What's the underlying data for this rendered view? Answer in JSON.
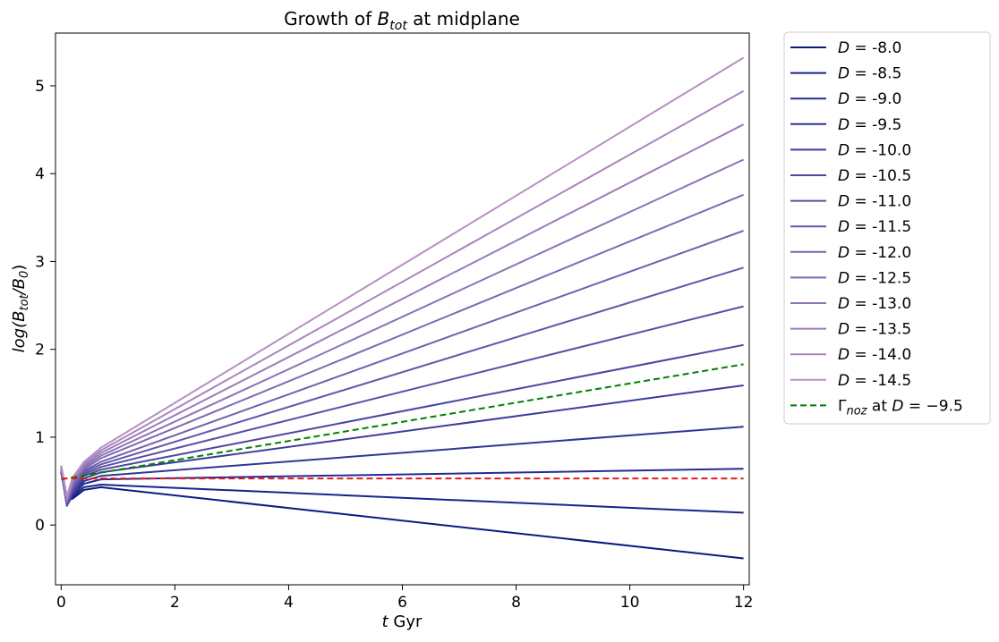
{
  "chart_data": {
    "type": "line",
    "title_prefix": "Growth of ",
    "title_var": "B",
    "title_sub": "tot",
    "title_suffix": " at midplane",
    "xlabel_var": "t",
    "xlabel_text": " Gyr",
    "ylabel_prefix": "log(B",
    "ylabel_sub1": "tot",
    "ylabel_mid": "/B",
    "ylabel_sub2": "0",
    "ylabel_suffix": ")",
    "xlim": [
      -0.1,
      12.1
    ],
    "ylim": [
      -0.68,
      5.6
    ],
    "xticks": [
      0,
      2,
      4,
      6,
      8,
      10,
      12
    ],
    "yticks": [
      0,
      1,
      2,
      3,
      4,
      5
    ],
    "legend_position": "outside-right",
    "grid": false,
    "series": [
      {
        "name": "D = -8.0",
        "label_value": "-8.0",
        "color": "#0b1a80",
        "style": "solid",
        "x": [
          0.0,
          0.1,
          0.2,
          0.4,
          0.7,
          12.0
        ],
        "y": [
          0.6,
          0.28,
          0.3,
          0.4,
          0.43,
          -0.38
        ]
      },
      {
        "name": "D = -8.5",
        "label_value": "-8.5",
        "color": "#16248a",
        "style": "solid",
        "x": [
          0.0,
          0.1,
          0.2,
          0.4,
          0.7,
          12.0
        ],
        "y": [
          0.6,
          0.25,
          0.32,
          0.43,
          0.46,
          0.14
        ]
      },
      {
        "name": "D = -9.0",
        "label_value": "-9.0",
        "color": "#232c93",
        "style": "solid",
        "x": [
          0.0,
          0.1,
          0.2,
          0.4,
          0.7,
          12.0
        ],
        "y": [
          0.62,
          0.23,
          0.33,
          0.47,
          0.52,
          0.64
        ]
      },
      {
        "name": "D = -9.5",
        "label_value": "-9.5",
        "color": "#2f3597",
        "style": "solid",
        "x": [
          0.0,
          0.1,
          0.2,
          0.4,
          0.7,
          12.0
        ],
        "y": [
          0.63,
          0.22,
          0.34,
          0.5,
          0.56,
          1.12
        ]
      },
      {
        "name": "D = -10.0",
        "label_value": "-10.0",
        "color": "#3c3d9c",
        "style": "solid",
        "x": [
          0.0,
          0.1,
          0.2,
          0.4,
          0.7,
          12.0
        ],
        "y": [
          0.63,
          0.22,
          0.36,
          0.53,
          0.6,
          1.59
        ]
      },
      {
        "name": "D = -10.5",
        "label_value": "-10.5",
        "color": "#4a46a1",
        "style": "solid",
        "x": [
          0.0,
          0.1,
          0.2,
          0.4,
          0.7,
          12.0
        ],
        "y": [
          0.64,
          0.22,
          0.38,
          0.56,
          0.63,
          2.05
        ]
      },
      {
        "name": "D = -11.0",
        "label_value": "-11.0",
        "color": "#574fa6",
        "style": "solid",
        "x": [
          0.0,
          0.1,
          0.2,
          0.4,
          0.7,
          12.0
        ],
        "y": [
          0.64,
          0.23,
          0.4,
          0.58,
          0.66,
          2.49
        ]
      },
      {
        "name": "D = -11.5",
        "label_value": "-11.5",
        "color": "#6457aa",
        "style": "solid",
        "x": [
          0.0,
          0.1,
          0.2,
          0.4,
          0.7,
          12.0
        ],
        "y": [
          0.65,
          0.24,
          0.42,
          0.6,
          0.69,
          2.93
        ]
      },
      {
        "name": "D = -12.0",
        "label_value": "-12.0",
        "color": "#7260ae",
        "style": "solid",
        "x": [
          0.0,
          0.1,
          0.2,
          0.4,
          0.7,
          12.0
        ],
        "y": [
          0.65,
          0.25,
          0.44,
          0.62,
          0.72,
          3.35
        ]
      },
      {
        "name": "D = -12.5",
        "label_value": "-12.5",
        "color": "#7f69b2",
        "style": "solid",
        "x": [
          0.0,
          0.1,
          0.2,
          0.4,
          0.7,
          12.0
        ],
        "y": [
          0.66,
          0.27,
          0.46,
          0.64,
          0.76,
          3.76
        ]
      },
      {
        "name": "D = -13.0",
        "label_value": "-13.0",
        "color": "#8d72b5",
        "style": "solid",
        "x": [
          0.0,
          0.1,
          0.2,
          0.4,
          0.7,
          12.0
        ],
        "y": [
          0.66,
          0.28,
          0.48,
          0.66,
          0.79,
          4.16
        ]
      },
      {
        "name": "D = -13.5",
        "label_value": "-13.5",
        "color": "#9b7bb9",
        "style": "solid",
        "x": [
          0.0,
          0.1,
          0.2,
          0.4,
          0.7,
          12.0
        ],
        "y": [
          0.67,
          0.3,
          0.5,
          0.68,
          0.82,
          4.56
        ]
      },
      {
        "name": "D = -14.0",
        "label_value": "-14.0",
        "color": "#a985bc",
        "style": "solid",
        "x": [
          0.0,
          0.1,
          0.2,
          0.4,
          0.7,
          12.0
        ],
        "y": [
          0.67,
          0.31,
          0.52,
          0.7,
          0.85,
          4.94
        ]
      },
      {
        "name": "D = -14.5",
        "label_value": "-14.5",
        "color": "#b790c0",
        "style": "solid",
        "x": [
          0.0,
          0.1,
          0.2,
          0.4,
          0.7,
          12.0
        ],
        "y": [
          0.68,
          0.33,
          0.54,
          0.72,
          0.88,
          5.32
        ]
      },
      {
        "name": "Γnoz at D = −9.5",
        "legend_kind": "gamma",
        "gamma_sub": "noz",
        "gamma_rest": " at ",
        "gamma_eq": " = −9.5",
        "color": "#008000",
        "style": "dashed",
        "x": [
          0.0,
          12.0
        ],
        "y": [
          0.52,
          1.83
        ]
      },
      {
        "name": "",
        "legend": false,
        "color": "#e41a1c",
        "style": "dashed",
        "x": [
          0.0,
          12.0
        ],
        "y": [
          0.53,
          0.53
        ]
      }
    ]
  }
}
